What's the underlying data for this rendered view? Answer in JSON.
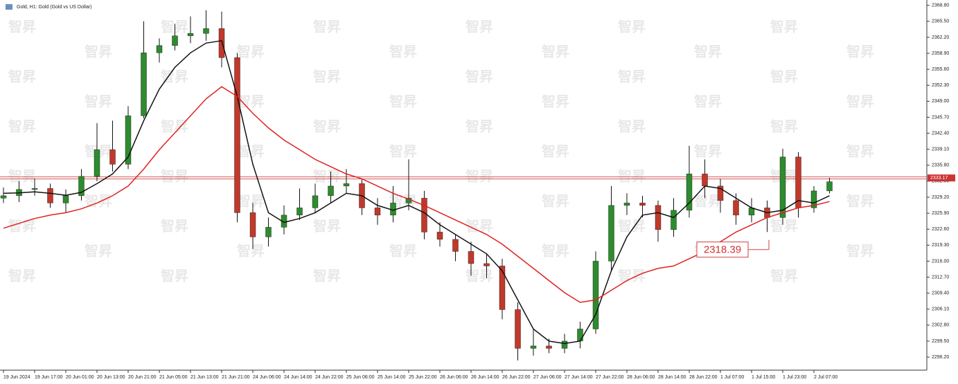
{
  "chart_data": {
    "type": "candlestick",
    "title": "Gold, H1:  Gold (Gold vs US Dollar)",
    "watermark": "智昇",
    "categories": [
      "19 Jun 2024",
      null,
      "19 Jun 17:00",
      null,
      "20 Jun 01:00",
      null,
      "20 Jun 13:00",
      null,
      "20 Jun 21:00",
      null,
      "21 Jun 05:00",
      null,
      "21 Jun 13:00",
      null,
      "21 Jun 21:00",
      null,
      "24 Jun 06:00",
      null,
      "24 Jun 14:00",
      null,
      "24 Jun 22:00",
      null,
      "25 Jun 06:00",
      null,
      "25 Jun 14:00",
      null,
      "25 Jun 22:00",
      null,
      "26 Jun 06:00",
      null,
      "26 Jun 14:00",
      null,
      "26 Jun 22:00",
      null,
      "27 Jun 06:00",
      null,
      "27 Jun 14:00",
      null,
      "27 Jun 22:00",
      null,
      "28 Jun 06:00",
      null,
      "28 Jun 14:00",
      null,
      "28 Jun 22:00",
      null,
      "1 Jul 07:00",
      null,
      "1 Jul 15:00",
      null,
      "1 Jul 23:00",
      null,
      "2 Jul 07:00",
      null
    ],
    "open": [
      2329.0,
      2329.5,
      2330.8,
      2331.0,
      2328.0,
      2329.5,
      2333.5,
      2339.0,
      2336.0,
      2346.0,
      2359.0,
      2360.5,
      2362.5,
      2363.0,
      2364.0,
      2358.0,
      2326.0,
      2321.0,
      2323.0,
      2325.5,
      2327.0,
      2329.5,
      2331.5,
      2332.0,
      2327.0,
      2325.5,
      2328.0,
      2329.0,
      2322.0,
      2320.5,
      2318.0,
      2315.5,
      2315.0,
      2306.0,
      2298.0,
      2298.5,
      2298.0,
      2299.5,
      2302.0,
      2316.0,
      2327.5,
      2328.0,
      2327.5,
      2322.5,
      2326.5,
      2334.0,
      2331.5,
      2328.5,
      2325.5,
      2327.0,
      2325.0,
      2337.5,
      2327.0,
      2330.5
    ],
    "high": [
      2331.2,
      2332.5,
      2333.0,
      2332.0,
      2330.8,
      2335.0,
      2344.5,
      2345.0,
      2348.0,
      2365.5,
      2362.0,
      2365.0,
      2366.5,
      2367.8,
      2367.5,
      2359.0,
      2328.0,
      2325.0,
      2327.5,
      2331.0,
      2332.0,
      2334.5,
      2335.0,
      2333.0,
      2329.0,
      2331.5,
      2337.0,
      2330.5,
      2324.0,
      2321.5,
      2320.0,
      2317.5,
      2316.5,
      2307.5,
      2302.0,
      2300.0,
      2301.0,
      2303.5,
      2318.0,
      2331.5,
      2330.0,
      2329.5,
      2328.5,
      2329.0,
      2339.8,
      2337.0,
      2333.0,
      2330.0,
      2329.0,
      2328.5,
      2339.2,
      2338.5,
      2331.5,
      2333.2
    ],
    "low": [
      2328.0,
      2328.2,
      2329.5,
      2327.0,
      2326.0,
      2328.5,
      2332.5,
      2334.5,
      2335.0,
      2345.5,
      2357.0,
      2359.5,
      2361.0,
      2361.5,
      2356.0,
      2324.0,
      2318.5,
      2319.0,
      2321.5,
      2324.5,
      2326.0,
      2328.0,
      2330.0,
      2325.5,
      2323.5,
      2324.0,
      2326.5,
      2320.5,
      2319.0,
      2316.0,
      2313.0,
      2312.5,
      2304.0,
      2295.5,
      2296.5,
      2297.0,
      2297.0,
      2298.0,
      2301.0,
      2314.0,
      2325.5,
      2325.0,
      2320.0,
      2321.0,
      2325.0,
      2329.0,
      2326.0,
      2323.5,
      2324.0,
      2322.0,
      2323.5,
      2325.0,
      2326.0,
      2330.0
    ],
    "close": [
      2329.5,
      2330.8,
      2331.0,
      2328.0,
      2329.5,
      2333.5,
      2339.0,
      2336.0,
      2346.0,
      2359.0,
      2360.5,
      2362.5,
      2363.0,
      2364.0,
      2358.0,
      2326.0,
      2321.0,
      2323.0,
      2325.5,
      2327.0,
      2329.5,
      2331.5,
      2332.0,
      2327.0,
      2325.5,
      2328.0,
      2329.0,
      2322.0,
      2320.5,
      2318.0,
      2315.5,
      2315.0,
      2306.0,
      2298.0,
      2298.5,
      2298.0,
      2299.5,
      2302.0,
      2316.0,
      2327.5,
      2328.0,
      2327.5,
      2322.5,
      2326.5,
      2334.0,
      2331.5,
      2328.5,
      2325.5,
      2327.0,
      2325.0,
      2337.5,
      2327.0,
      2330.5,
      2332.4
    ],
    "up_color": "#2e8b2e",
    "down_color": "#c0392b",
    "lines": [
      {
        "color": "#111111",
        "values": [
          2330.0,
          2330.1,
          2330.3,
          2330.0,
          2329.6,
          2330.2,
          2332.0,
          2334.0,
          2337.5,
          2345.0,
          2351.5,
          2356.0,
          2359.0,
          2361.0,
          2361.5,
          2350.0,
          2336.0,
          2326.0,
          2324.0,
          2324.8,
          2326.0,
          2328.0,
          2330.0,
          2329.5,
          2327.5,
          2326.5,
          2327.5,
          2326.0,
          2323.5,
          2321.5,
          2319.5,
          2317.5,
          2314.0,
          2308.0,
          2302.0,
          2299.5,
          2299.0,
          2299.5,
          2305.0,
          2314.0,
          2321.0,
          2325.5,
          2326.0,
          2325.0,
          2328.0,
          2331.5,
          2331.0,
          2329.0,
          2327.0,
          2326.0,
          2326.5,
          2328.5,
          2328.0,
          2329.5
        ]
      },
      {
        "color": "#e02020",
        "values": [
          2322.8,
          2323.8,
          2324.8,
          2325.5,
          2326.0,
          2326.8,
          2328.0,
          2329.5,
          2331.5,
          2335.0,
          2339.0,
          2342.5,
          2346.0,
          2349.5,
          2352.0,
          2350.0,
          2346.5,
          2343.5,
          2341.0,
          2339.0,
          2337.0,
          2335.5,
          2334.0,
          2333.0,
          2331.5,
          2330.0,
          2328.8,
          2327.5,
          2326.0,
          2324.5,
          2323.0,
          2321.5,
          2319.5,
          2317.0,
          2314.5,
          2312.0,
          2309.5,
          2307.5,
          2308.0,
          2310.0,
          2312.0,
          2313.5,
          2314.5,
          2315.0,
          2316.5,
          2318.0,
          2320.0,
          2322.0,
          2323.5,
          2325.0,
          2326.0,
          2327.0,
          2327.5,
          2328.3
        ]
      }
    ],
    "current_price": 2333.17,
    "annotation": 2318.39,
    "ylim": [
      2293.5,
      2369.9
    ],
    "yticks": [
      {
        "value": 2368.8,
        "label": "2368.80"
      },
      {
        "value": 2365.5,
        "label": "2365.50"
      },
      {
        "value": 2362.2,
        "label": "2362.20"
      },
      {
        "value": 2358.9,
        "label": "2358.90"
      },
      {
        "value": 2355.6,
        "label": "2355.60"
      },
      {
        "value": 2352.3,
        "label": "2352.30"
      },
      {
        "value": 2349,
        "label": "2349.00"
      },
      {
        "value": 2345.7,
        "label": "2345.70"
      },
      {
        "value": 2342.4,
        "label": "2342.40"
      },
      {
        "value": 2339.1,
        "label": "2339.10"
      },
      {
        "value": 2335.8,
        "label": "2335.80"
      },
      {
        "value": 2332.5,
        "label": "2332.50"
      },
      {
        "value": 2329.2,
        "label": "2329.20"
      },
      {
        "value": 2325.9,
        "label": "2325.90"
      },
      {
        "value": 2322.6,
        "label": "2322.60"
      },
      {
        "value": 2319.3,
        "label": "2319.30"
      },
      {
        "value": 2316,
        "label": "2316.00"
      },
      {
        "value": 2312.7,
        "label": "2312.70"
      },
      {
        "value": 2309.4,
        "label": "2309.40"
      },
      {
        "value": 2306.1,
        "label": "2306.10"
      },
      {
        "value": 2302.8,
        "label": "2302.80"
      },
      {
        "value": 2299.5,
        "label": "2299.50"
      },
      {
        "value": 2296.2,
        "label": "2296.20"
      }
    ]
  }
}
